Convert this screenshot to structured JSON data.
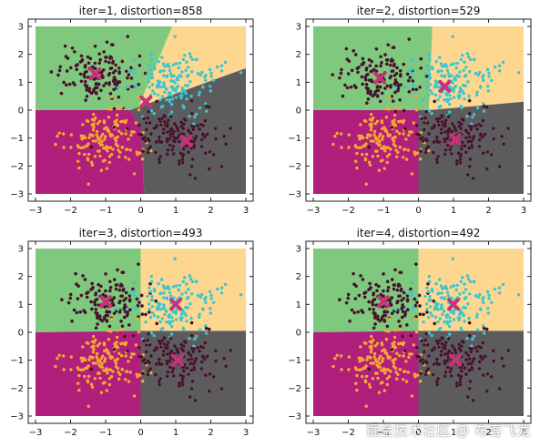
{
  "chart_data": [
    {
      "type": "scatter",
      "title": "iter=1, distortion=858",
      "xlim": [
        -3,
        3
      ],
      "ylim": [
        -3,
        3
      ],
      "xticks": [
        -3,
        -2,
        -1,
        0,
        1,
        2,
        3
      ],
      "yticks": [
        -3,
        -2,
        -1,
        0,
        1,
        2,
        3
      ],
      "clusters": [
        {
          "region_color": "#7fc97f",
          "point_color": "#3b1022",
          "center": [
            -1.3,
            1.3
          ],
          "spread": [
            0.55,
            0.5
          ],
          "n": 140
        },
        {
          "region_color": "#fdd68f",
          "point_color": "#3cc6cc",
          "center": [
            1.0,
            1.0
          ],
          "spread": [
            0.6,
            0.55
          ],
          "n": 160
        },
        {
          "region_color": "#b01f7c",
          "point_color": "#f5a834",
          "center": [
            -1.0,
            -1.0
          ],
          "spread": [
            0.55,
            0.55
          ],
          "n": 150
        },
        {
          "region_color": "#5c5c5e",
          "point_color": "#3b1022",
          "center": [
            1.0,
            -1.0
          ],
          "spread": [
            0.6,
            0.55
          ],
          "n": 150
        }
      ],
      "centroids": [
        [
          -1.3,
          1.3
        ],
        [
          0.15,
          0.3
        ],
        [
          1.3,
          -1.1
        ]
      ],
      "centroid_color": "#c8327a",
      "regions": [
        {
          "color": "#7fc97f",
          "polygon": [
            [
              -3,
              3
            ],
            [
              0.9,
              3
            ],
            [
              -0.1,
              0.0
            ],
            [
              -3,
              0.0
            ]
          ]
        },
        {
          "color": "#fdd68f",
          "polygon": [
            [
              0.9,
              3
            ],
            [
              3,
              3
            ],
            [
              3,
              1.5
            ],
            [
              -0.3,
              0.0
            ],
            [
              -0.1,
              0.0
            ]
          ]
        },
        {
          "color": "#5c5c5e",
          "polygon": [
            [
              3,
              1.5
            ],
            [
              3,
              -3
            ],
            [
              0.1,
              -3
            ],
            [
              0.0,
              -0.6
            ],
            [
              -0.3,
              0.0
            ]
          ]
        },
        {
          "color": "#b01f7c",
          "polygon": [
            [
              -3,
              0.0
            ],
            [
              -0.3,
              0.0
            ],
            [
              0.0,
              -0.6
            ],
            [
              0.1,
              -3
            ],
            [
              -3,
              -3
            ]
          ]
        }
      ]
    },
    {
      "type": "scatter",
      "title": "iter=2, distortion=529",
      "xlim": [
        -3,
        3
      ],
      "ylim": [
        -3,
        3
      ],
      "xticks": [
        -3,
        -2,
        -1,
        0,
        1,
        2,
        3
      ],
      "yticks": [
        -3,
        -2,
        -1,
        0,
        1,
        2,
        3
      ],
      "clusters": [
        {
          "region_color": "#7fc97f",
          "point_color": "#3b1022",
          "center": [
            -1.2,
            1.2
          ],
          "spread": [
            0.55,
            0.5
          ],
          "n": 140
        },
        {
          "region_color": "#fdd68f",
          "point_color": "#3cc6cc",
          "center": [
            1.0,
            1.0
          ],
          "spread": [
            0.6,
            0.55
          ],
          "n": 160
        },
        {
          "region_color": "#b01f7c",
          "point_color": "#f5a834",
          "center": [
            -1.0,
            -1.0
          ],
          "spread": [
            0.55,
            0.55
          ],
          "n": 150
        },
        {
          "region_color": "#5c5c5e",
          "point_color": "#3b1022",
          "center": [
            1.0,
            -1.0
          ],
          "spread": [
            0.6,
            0.55
          ],
          "n": 150
        }
      ],
      "centroids": [
        [
          -1.1,
          1.15
        ],
        [
          0.75,
          0.85
        ],
        [
          1.05,
          -1.05
        ]
      ],
      "centroid_color": "#c8327a",
      "regions": [
        {
          "color": "#7fc97f",
          "polygon": [
            [
              -3,
              3
            ],
            [
              0.4,
              3
            ],
            [
              0.3,
              0.0
            ],
            [
              -3,
              0.0
            ]
          ]
        },
        {
          "color": "#fdd68f",
          "polygon": [
            [
              0.4,
              3
            ],
            [
              3,
              3
            ],
            [
              3,
              0.3
            ],
            [
              0.3,
              0.0
            ]
          ]
        },
        {
          "color": "#5c5c5e",
          "polygon": [
            [
              3,
              0.3
            ],
            [
              3,
              -3
            ],
            [
              0.0,
              -3
            ],
            [
              0.0,
              0.0
            ],
            [
              0.3,
              0.0
            ]
          ]
        },
        {
          "color": "#b01f7c",
          "polygon": [
            [
              -3,
              0.0
            ],
            [
              0.0,
              0.0
            ],
            [
              0.0,
              -3
            ],
            [
              -3,
              -3
            ]
          ]
        }
      ]
    },
    {
      "type": "scatter",
      "title": "iter=3, distortion=493",
      "xlim": [
        -3,
        3
      ],
      "ylim": [
        -3,
        3
      ],
      "xticks": [
        -3,
        -2,
        -1,
        0,
        1,
        2,
        3
      ],
      "yticks": [
        -3,
        -2,
        -1,
        0,
        1,
        2,
        3
      ],
      "clusters": [
        {
          "region_color": "#7fc97f",
          "point_color": "#3b1022",
          "center": [
            -1.0,
            1.1
          ],
          "spread": [
            0.55,
            0.5
          ],
          "n": 140
        },
        {
          "region_color": "#fdd68f",
          "point_color": "#3cc6cc",
          "center": [
            1.0,
            1.0
          ],
          "spread": [
            0.6,
            0.55
          ],
          "n": 160
        },
        {
          "region_color": "#b01f7c",
          "point_color": "#f5a834",
          "center": [
            -1.0,
            -1.0
          ],
          "spread": [
            0.55,
            0.55
          ],
          "n": 150
        },
        {
          "region_color": "#5c5c5e",
          "point_color": "#3b1022",
          "center": [
            1.0,
            -1.0
          ],
          "spread": [
            0.6,
            0.55
          ],
          "n": 150
        }
      ],
      "centroids": [
        [
          -1.0,
          1.1
        ],
        [
          1.0,
          1.0
        ],
        [
          1.05,
          -1.0
        ]
      ],
      "centroid_color": "#c8327a",
      "regions": [
        {
          "color": "#7fc97f",
          "polygon": [
            [
              -3,
              3
            ],
            [
              0.0,
              3
            ],
            [
              0.0,
              0.05
            ],
            [
              -3,
              0.0
            ]
          ]
        },
        {
          "color": "#fdd68f",
          "polygon": [
            [
              0.0,
              3
            ],
            [
              3,
              3
            ],
            [
              3,
              0.05
            ],
            [
              0.0,
              0.05
            ]
          ]
        },
        {
          "color": "#5c5c5e",
          "polygon": [
            [
              3,
              0.05
            ],
            [
              3,
              -3
            ],
            [
              0.0,
              -3
            ],
            [
              0.0,
              0.05
            ]
          ]
        },
        {
          "color": "#b01f7c",
          "polygon": [
            [
              -3,
              0.0
            ],
            [
              0.0,
              0.05
            ],
            [
              0.0,
              -3
            ],
            [
              -3,
              -3
            ]
          ]
        }
      ]
    },
    {
      "type": "scatter",
      "title": "iter=4, distortion=492",
      "xlim": [
        -3,
        3
      ],
      "ylim": [
        -3,
        3
      ],
      "xticks": [
        -3,
        -2,
        -1,
        0,
        1,
        2,
        3
      ],
      "yticks": [
        -3,
        -2,
        -1,
        0,
        1,
        2,
        3
      ],
      "clusters": [
        {
          "region_color": "#7fc97f",
          "point_color": "#3b1022",
          "center": [
            -1.0,
            1.1
          ],
          "spread": [
            0.55,
            0.5
          ],
          "n": 140
        },
        {
          "region_color": "#fdd68f",
          "point_color": "#3cc6cc",
          "center": [
            1.0,
            1.0
          ],
          "spread": [
            0.6,
            0.55
          ],
          "n": 160
        },
        {
          "region_color": "#b01f7c",
          "point_color": "#f5a834",
          "center": [
            -1.0,
            -1.0
          ],
          "spread": [
            0.55,
            0.55
          ],
          "n": 150
        },
        {
          "region_color": "#5c5c5e",
          "point_color": "#3b1022",
          "center": [
            1.0,
            -1.0
          ],
          "spread": [
            0.6,
            0.55
          ],
          "n": 150
        }
      ],
      "centroids": [
        [
          -1.0,
          1.1
        ],
        [
          1.0,
          1.0
        ],
        [
          1.05,
          -1.0
        ]
      ],
      "centroid_color": "#c8327a",
      "regions": [
        {
          "color": "#7fc97f",
          "polygon": [
            [
              -3,
              3
            ],
            [
              0.0,
              3
            ],
            [
              0.0,
              0.05
            ],
            [
              -3,
              0.0
            ]
          ]
        },
        {
          "color": "#fdd68f",
          "polygon": [
            [
              0.0,
              3
            ],
            [
              3,
              3
            ],
            [
              3,
              0.05
            ],
            [
              0.0,
              0.05
            ]
          ]
        },
        {
          "color": "#5c5c5e",
          "polygon": [
            [
              3,
              0.05
            ],
            [
              3,
              -3
            ],
            [
              0.0,
              -3
            ],
            [
              0.0,
              0.05
            ]
          ]
        },
        {
          "color": "#b01f7c",
          "polygon": [
            [
              -3,
              0.0
            ],
            [
              0.0,
              0.05
            ],
            [
              0.0,
              -3
            ],
            [
              -3,
              -3
            ]
          ]
        }
      ]
    }
  ],
  "watermark": "掘金技术社区 @ 布客飞龙"
}
